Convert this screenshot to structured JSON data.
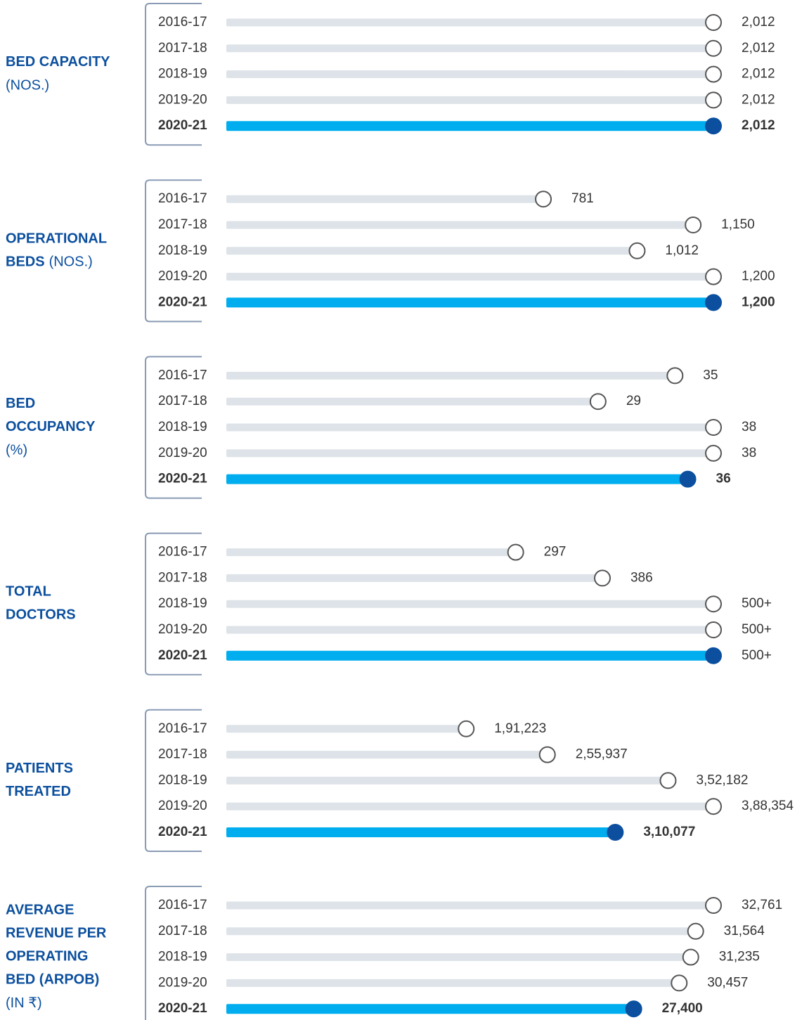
{
  "chart_data": [
    {
      "type": "bar",
      "title_lines": [
        "BED CAPACITY"
      ],
      "unit": "(NOS.)",
      "unit_inline": false,
      "bold_last_value": true,
      "categories": [
        "2016-17",
        "2017-18",
        "2018-19",
        "2019-20",
        "2020-21"
      ],
      "values": [
        2012,
        2012,
        2012,
        2012,
        2012
      ],
      "value_labels": [
        "2,012",
        "2,012",
        "2,012",
        "2,012",
        "2,012"
      ],
      "color": "#dde3e8",
      "highlight_color": "#00aeef",
      "marker_color": "#0b4f9e"
    },
    {
      "type": "bar",
      "title_lines": [
        "OPERATIONAL",
        "BEDS"
      ],
      "unit": "(NOS.)",
      "unit_inline": true,
      "bold_last_value": true,
      "categories": [
        "2016-17",
        "2017-18",
        "2018-19",
        "2019-20",
        "2020-21"
      ],
      "values": [
        781,
        1150,
        1012,
        1200,
        1200
      ],
      "value_labels": [
        "781",
        "1,150",
        "1,012",
        "1,200",
        "1,200"
      ],
      "color": "#dde3e8",
      "highlight_color": "#00aeef",
      "marker_color": "#0b4f9e"
    },
    {
      "type": "bar",
      "title_lines": [
        "BED",
        "OCCUPANCY"
      ],
      "unit": "(%)",
      "unit_inline": false,
      "bold_last_value": true,
      "categories": [
        "2016-17",
        "2017-18",
        "2018-19",
        "2019-20",
        "2020-21"
      ],
      "values": [
        35,
        29,
        38,
        38,
        36
      ],
      "color": "#dde3e8",
      "highlight_color": "#00aeef",
      "marker_color": "#0b4f9e"
    },
    {
      "type": "bar",
      "title_lines": [
        "TOTAL",
        "DOCTORS"
      ],
      "bold_last_value": false,
      "categories": [
        "2016-17",
        "2017-18",
        "2018-19",
        "2019-20",
        "2020-21"
      ],
      "values": [
        297,
        386,
        500,
        500,
        500
      ],
      "value_labels": [
        "297",
        "386",
        "500+",
        "500+",
        "500+"
      ],
      "color": "#dde3e8",
      "highlight_color": "#00aeef",
      "marker_color": "#0b4f9e"
    },
    {
      "type": "bar",
      "title_lines": [
        "PATIENTS",
        "TREATED"
      ],
      "bold_last_value": true,
      "categories": [
        "2016-17",
        "2017-18",
        "2018-19",
        "2019-20",
        "2020-21"
      ],
      "values": [
        191223,
        255937,
        352182,
        388354,
        310077
      ],
      "value_labels": [
        "1,91,223",
        "2,55,937",
        "3,52,182",
        "3,88,354",
        "3,10,077"
      ],
      "color": "#dde3e8",
      "highlight_color": "#00aeef",
      "marker_color": "#0b4f9e"
    },
    {
      "type": "bar",
      "title_lines": [
        "AVERAGE",
        "REVENUE PER",
        "OPERATING",
        "BED (ARPOB)"
      ],
      "unit": "(IN ₹)",
      "unit_inline": false,
      "bold_last_value": true,
      "categories": [
        "2016-17",
        "2017-18",
        "2018-19",
        "2019-20",
        "2020-21"
      ],
      "values": [
        32761,
        31564,
        31235,
        30457,
        27400
      ],
      "value_labels": [
        "32,761",
        "31,564",
        "31,235",
        "30,457",
        "27,400"
      ],
      "color": "#dde3e8",
      "highlight_color": "#00aeef",
      "marker_color": "#0b4f9e"
    }
  ]
}
